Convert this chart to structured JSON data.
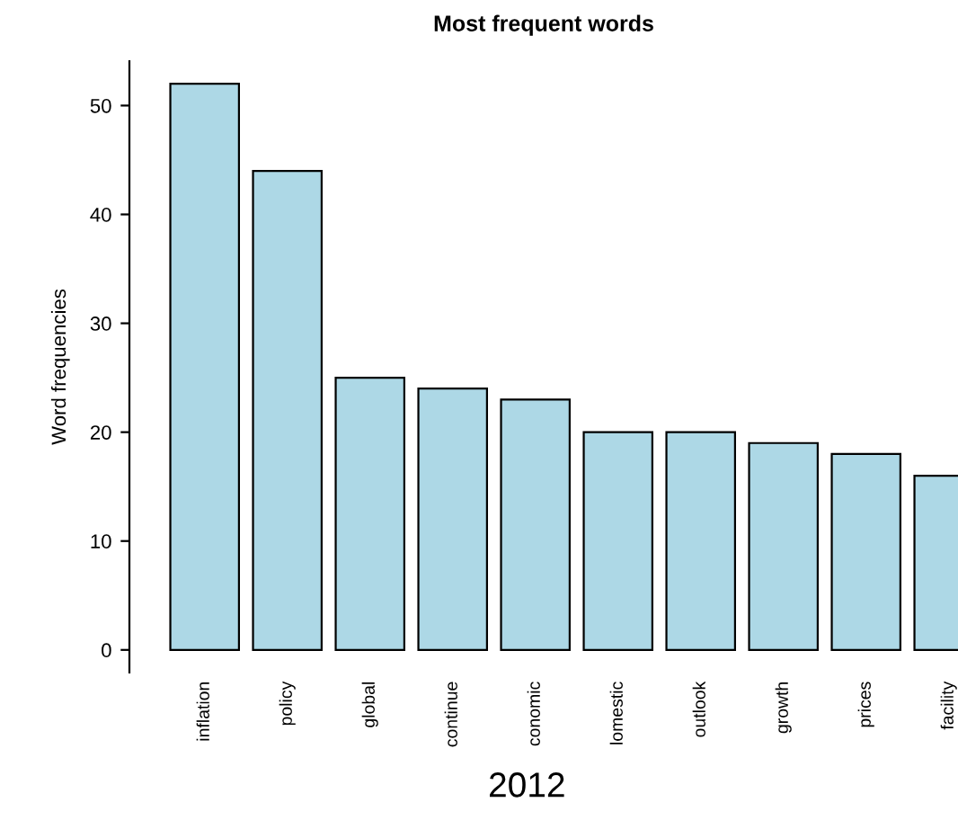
{
  "chart_data": {
    "type": "bar",
    "title": "Most frequent words",
    "ylabel": "Word frequencies",
    "categories": [
      "inflation",
      "policy",
      "global",
      "continue",
      "conomic",
      "lomestic",
      "outlook",
      "growth",
      "prices",
      "facility"
    ],
    "values": [
      52,
      44,
      25,
      24,
      23,
      20,
      20,
      19,
      18,
      16
    ],
    "color": "#add8e6",
    "ylim": [
      -2.08,
      54.08
    ],
    "yticks": [
      0,
      10,
      20,
      30,
      40,
      50
    ],
    "grid": false,
    "annotations": [
      "2012"
    ]
  }
}
